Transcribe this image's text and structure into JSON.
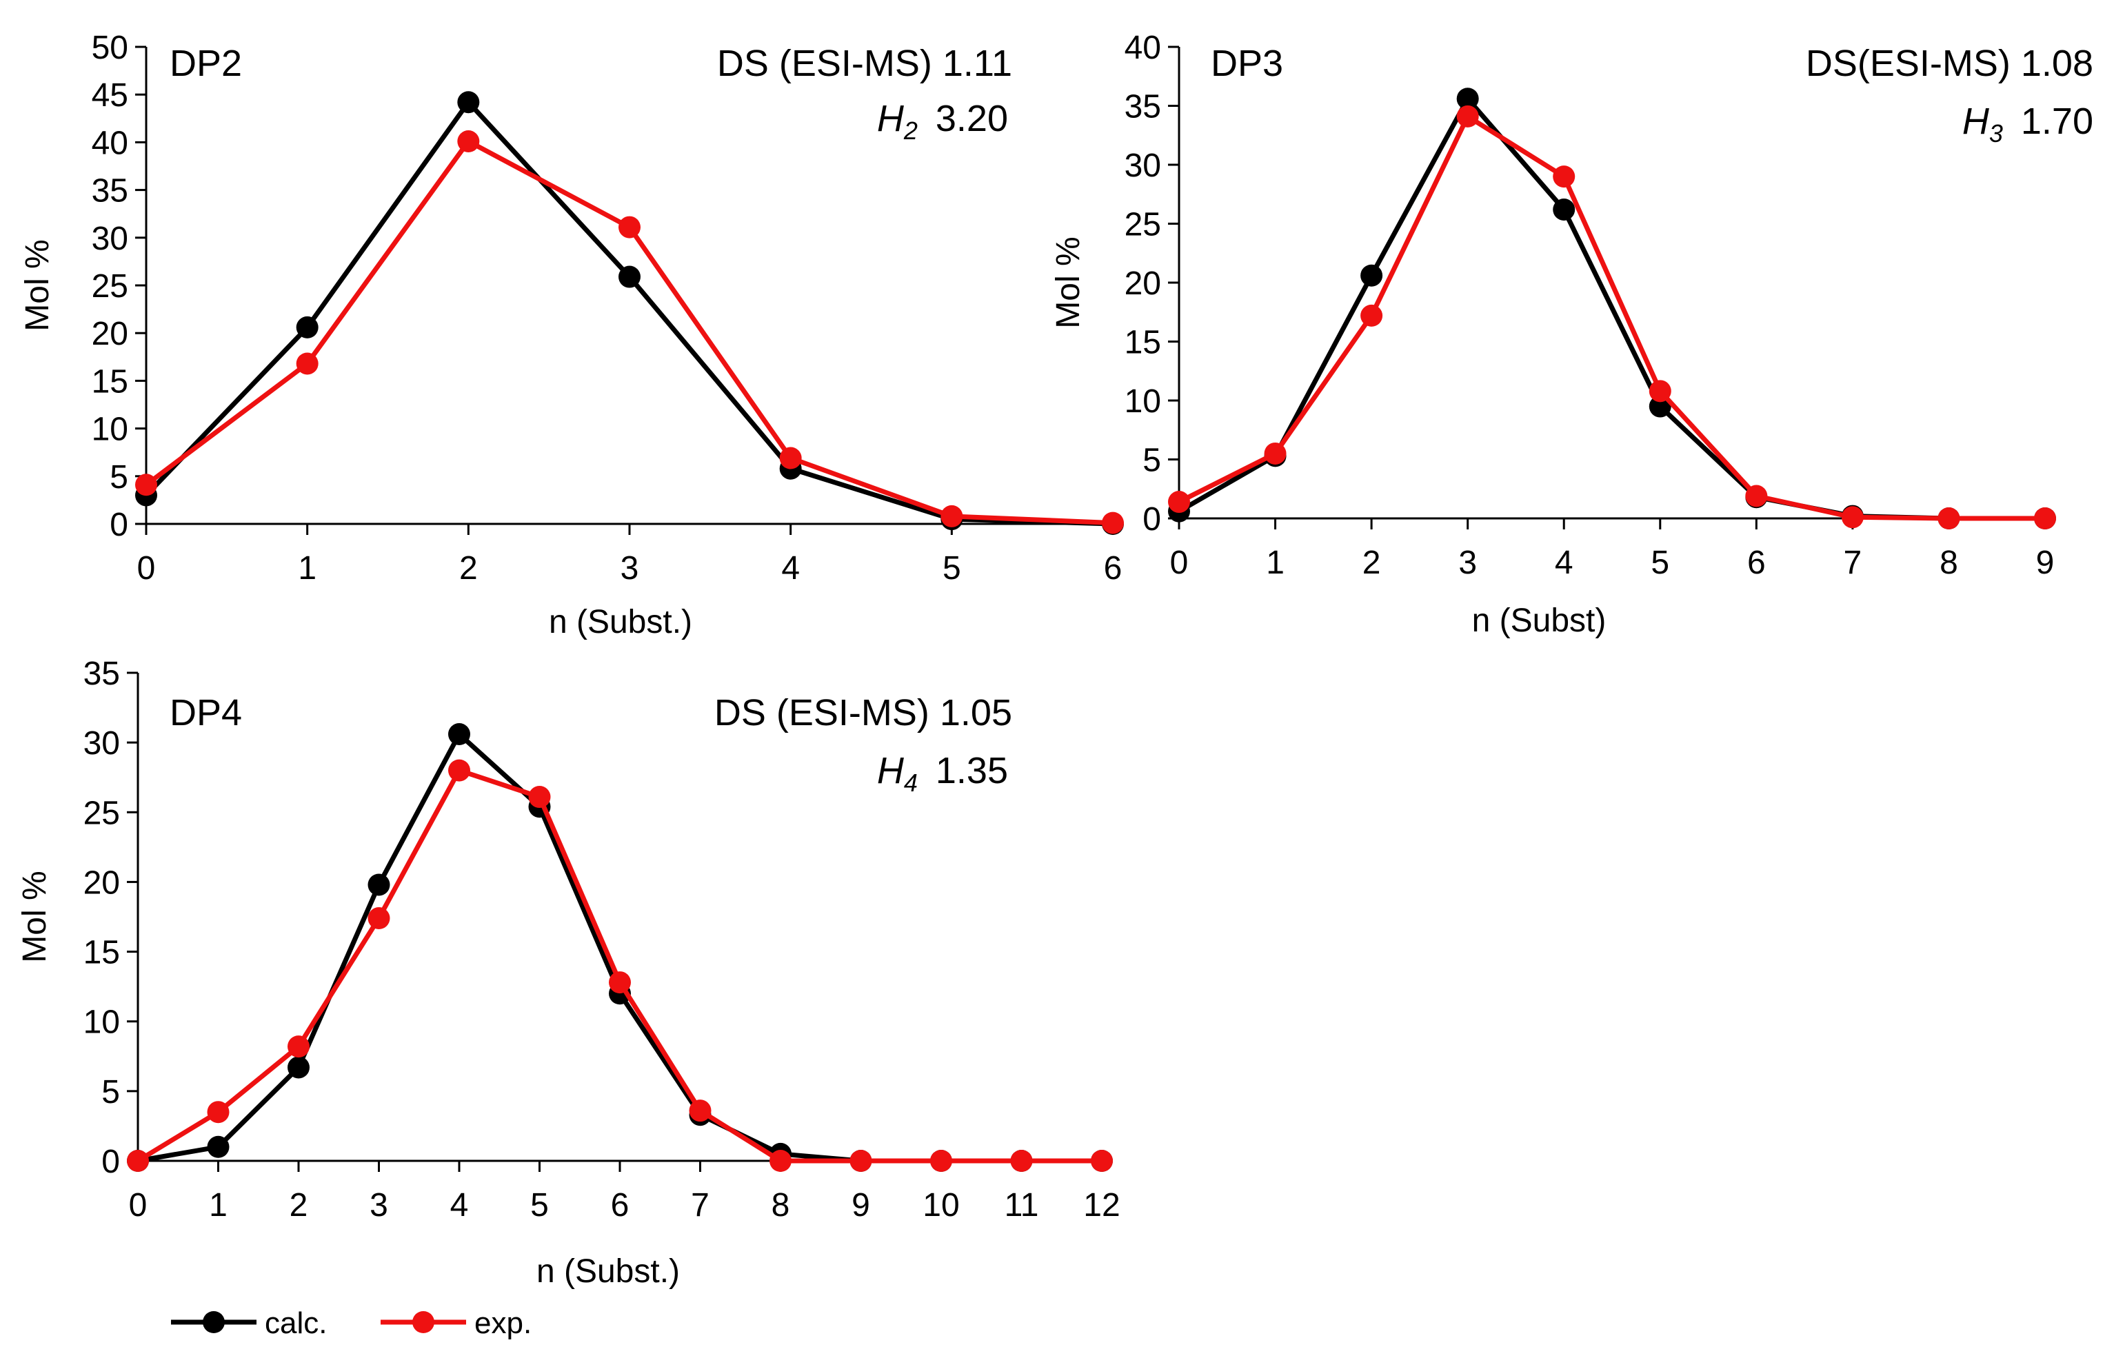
{
  "chart_data": [
    {
      "type": "line",
      "panel_label": "DP2",
      "title": "",
      "xlabel": "n (Subst.)",
      "ylabel": "Mol %",
      "x": [
        0,
        1,
        2,
        3,
        4,
        5,
        6
      ],
      "xlim": [
        0,
        6
      ],
      "ylim": [
        0,
        50
      ],
      "y_ticks": [
        0,
        5,
        10,
        15,
        20,
        25,
        30,
        35,
        40,
        45,
        50
      ],
      "x_ticks": [
        0,
        1,
        2,
        3,
        4,
        5,
        6
      ],
      "annotation_ds": "DS (ESI-MS) 1.11",
      "annotation_h_symbol": "H",
      "annotation_h_sub": "2",
      "annotation_h_value": "3.20",
      "series": [
        {
          "name": "calc.",
          "color": "#000000",
          "values": [
            3.0,
            20.6,
            44.2,
            25.9,
            5.8,
            0.5,
            0.0
          ]
        },
        {
          "name": "exp.",
          "color": "#ee1111",
          "values": [
            4.1,
            16.8,
            40.1,
            31.1,
            6.9,
            0.8,
            0.1
          ]
        }
      ]
    },
    {
      "type": "line",
      "panel_label": "DP3",
      "title": "",
      "xlabel": "n (Subst)",
      "ylabel": "Mol %",
      "x": [
        0,
        1,
        2,
        3,
        4,
        5,
        6,
        7,
        8,
        9
      ],
      "xlim": [
        0,
        9
      ],
      "ylim": [
        0,
        40
      ],
      "y_ticks": [
        0,
        5,
        10,
        15,
        20,
        25,
        30,
        35,
        40
      ],
      "x_ticks": [
        0,
        1,
        2,
        3,
        4,
        5,
        6,
        7,
        8,
        9
      ],
      "annotation_ds": "DS(ESI-MS) 1.08",
      "annotation_h_symbol": "H",
      "annotation_h_sub": "3",
      "annotation_h_value": "1.70",
      "series": [
        {
          "name": "calc.",
          "color": "#000000",
          "values": [
            0.6,
            5.3,
            20.6,
            35.6,
            26.2,
            9.5,
            1.8,
            0.2,
            0.0,
            0.0
          ]
        },
        {
          "name": "exp.",
          "color": "#ee1111",
          "values": [
            1.4,
            5.5,
            17.2,
            34.1,
            29.0,
            10.8,
            1.9,
            0.1,
            0.0,
            0.0
          ]
        }
      ]
    },
    {
      "type": "line",
      "panel_label": "DP4",
      "title": "",
      "xlabel": "n (Subst.)",
      "ylabel": "Mol %",
      "x": [
        0,
        1,
        2,
        3,
        4,
        5,
        6,
        7,
        8,
        9,
        10,
        11,
        12
      ],
      "xlim": [
        0,
        12
      ],
      "ylim": [
        0,
        35
      ],
      "y_ticks": [
        0,
        5,
        10,
        15,
        20,
        25,
        30,
        35
      ],
      "x_ticks": [
        0,
        1,
        2,
        3,
        4,
        5,
        6,
        7,
        8,
        9,
        10,
        11,
        12
      ],
      "annotation_ds": "DS (ESI-MS) 1.05",
      "annotation_h_symbol": "H",
      "annotation_h_sub": "4",
      "annotation_h_value": "1.35",
      "series": [
        {
          "name": "calc.",
          "color": "#000000",
          "values": [
            0.0,
            1.0,
            6.7,
            19.8,
            30.6,
            25.4,
            12.0,
            3.3,
            0.5,
            0.0,
            0.0,
            0.0,
            0.0
          ]
        },
        {
          "name": "exp.",
          "color": "#ee1111",
          "values": [
            0.0,
            3.5,
            8.2,
            17.4,
            28.0,
            26.1,
            12.8,
            3.6,
            0.0,
            0.0,
            0.0,
            0.0,
            0.0
          ]
        }
      ]
    }
  ],
  "legend": {
    "position": "bottom-left",
    "items": [
      {
        "label": "calc.",
        "color": "#000000"
      },
      {
        "label": "exp.",
        "color": "#ee1111"
      }
    ]
  }
}
